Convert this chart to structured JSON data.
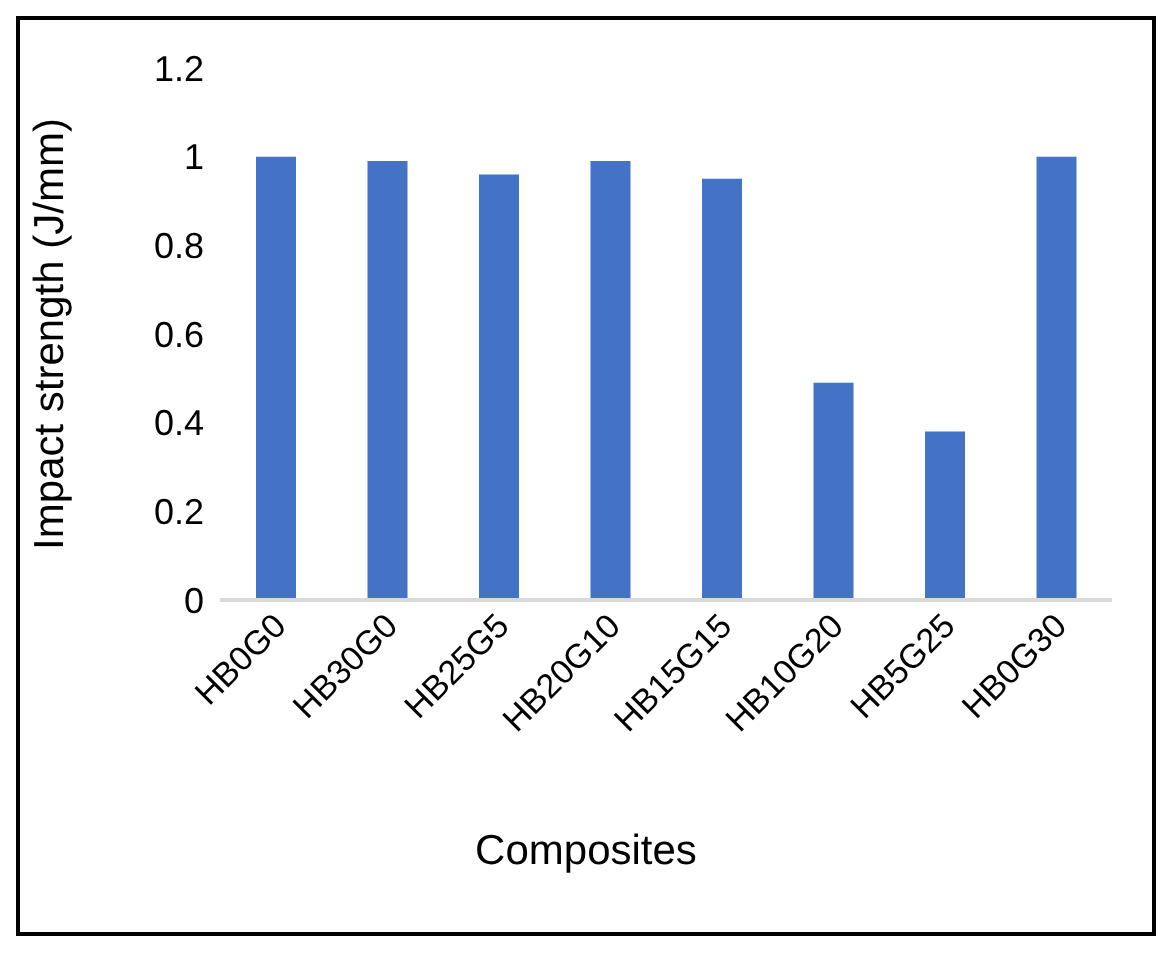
{
  "chart_data": {
    "type": "bar",
    "xlabel": "Composites",
    "ylabel": "Impact strength (J/mm)",
    "categories": [
      "HB0G0",
      "HB30G0",
      "HB25G5",
      "HB20G10",
      "HB15G15",
      "HB10G20",
      "HB5G25",
      "HB0G30"
    ],
    "values": [
      1.0,
      0.99,
      0.96,
      0.99,
      0.95,
      0.49,
      0.38,
      1.0
    ],
    "color": "#4472c4",
    "ylim": [
      0,
      1.2
    ],
    "yticks": [
      0,
      0.2,
      0.4,
      0.6,
      0.8,
      1,
      1.2
    ],
    "grid": false,
    "legend": false
  }
}
